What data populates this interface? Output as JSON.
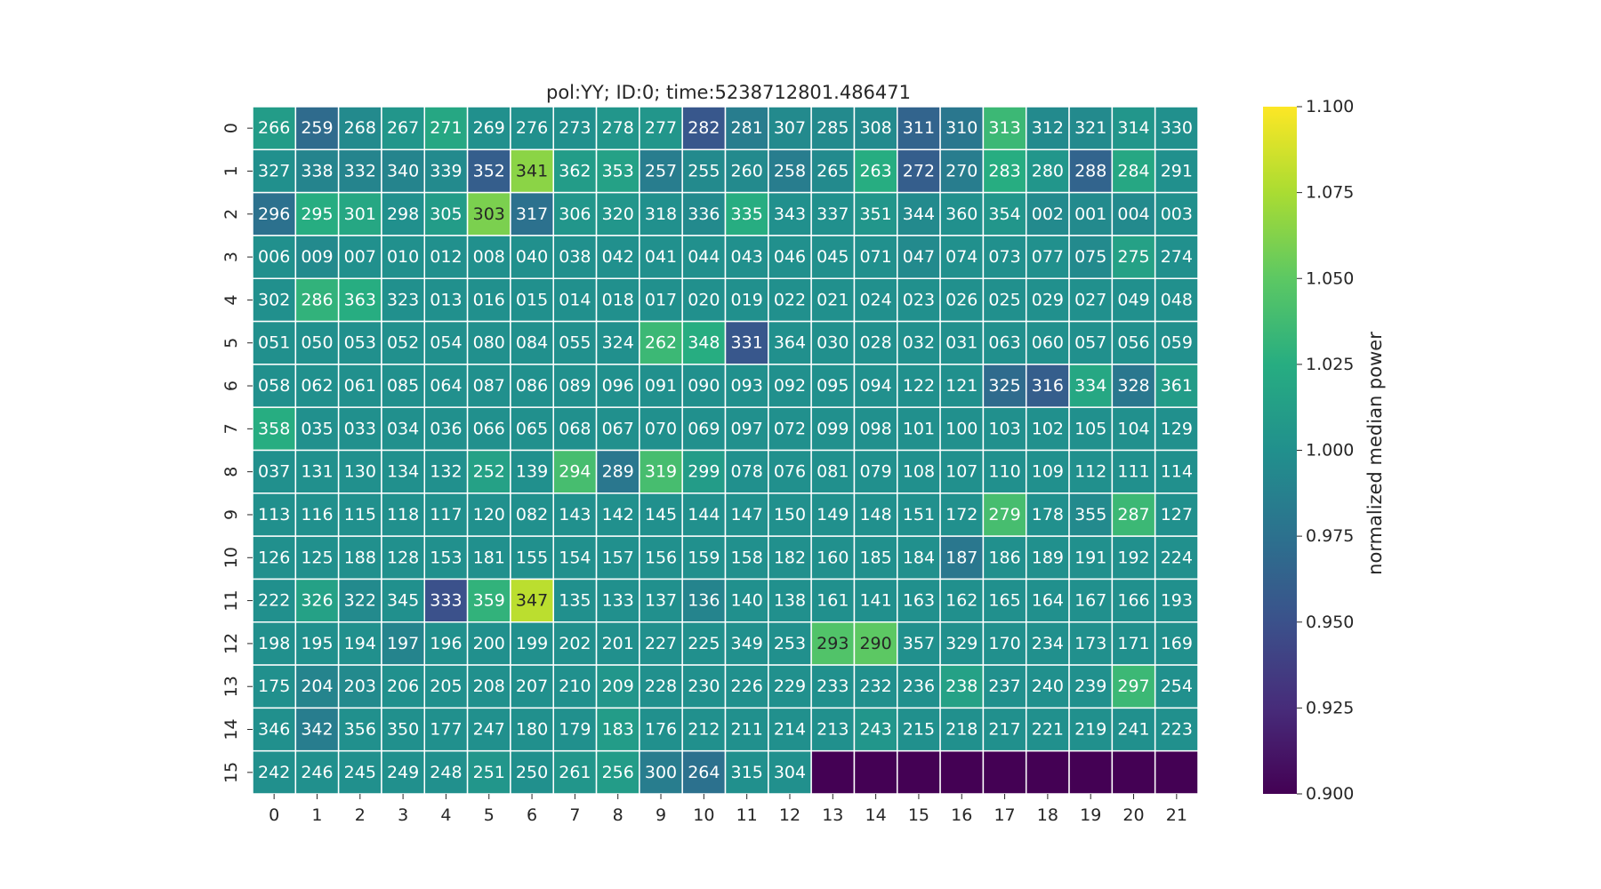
{
  "chart_data": {
    "type": "heatmap",
    "title": "pol:YY; ID:0; time:5238712801.486471",
    "x_ticks": [
      "0",
      "1",
      "2",
      "3",
      "4",
      "5",
      "6",
      "7",
      "8",
      "9",
      "10",
      "11",
      "12",
      "13",
      "14",
      "15",
      "16",
      "17",
      "18",
      "19",
      "20",
      "21"
    ],
    "y_ticks": [
      "0",
      "1",
      "2",
      "3",
      "4",
      "5",
      "6",
      "7",
      "8",
      "9",
      "10",
      "11",
      "12",
      "13",
      "14",
      "15"
    ],
    "colorbar": {
      "label": "normalized median power",
      "ticks": [
        "0.900",
        "0.925",
        "0.950",
        "0.975",
        "1.000",
        "1.025",
        "1.050",
        "1.075",
        "1.100"
      ],
      "range": [
        0.9,
        1.1
      ],
      "colormap": "viridis"
    },
    "labels": [
      [
        "266",
        "259",
        "268",
        "267",
        "271",
        "269",
        "276",
        "273",
        "278",
        "277",
        "282",
        "281",
        "307",
        "285",
        "308",
        "311",
        "310",
        "313",
        "312",
        "321",
        "314",
        "330"
      ],
      [
        "327",
        "338",
        "332",
        "340",
        "339",
        "352",
        "341",
        "362",
        "353",
        "257",
        "255",
        "260",
        "258",
        "265",
        "263",
        "272",
        "270",
        "283",
        "280",
        "288",
        "284",
        "291"
      ],
      [
        "296",
        "295",
        "301",
        "298",
        "305",
        "303",
        "317",
        "306",
        "320",
        "318",
        "336",
        "335",
        "343",
        "337",
        "351",
        "344",
        "360",
        "354",
        "002",
        "001",
        "004",
        "003"
      ],
      [
        "006",
        "009",
        "007",
        "010",
        "012",
        "008",
        "040",
        "038",
        "042",
        "041",
        "044",
        "043",
        "046",
        "045",
        "071",
        "047",
        "074",
        "073",
        "077",
        "075",
        "275",
        "274"
      ],
      [
        "302",
        "286",
        "363",
        "323",
        "013",
        "016",
        "015",
        "014",
        "018",
        "017",
        "020",
        "019",
        "022",
        "021",
        "024",
        "023",
        "026",
        "025",
        "029",
        "027",
        "049",
        "048"
      ],
      [
        "051",
        "050",
        "053",
        "052",
        "054",
        "080",
        "084",
        "055",
        "324",
        "262",
        "348",
        "331",
        "364",
        "030",
        "028",
        "032",
        "031",
        "063",
        "060",
        "057",
        "056",
        "059"
      ],
      [
        "058",
        "062",
        "061",
        "085",
        "064",
        "087",
        "086",
        "089",
        "096",
        "091",
        "090",
        "093",
        "092",
        "095",
        "094",
        "122",
        "121",
        "325",
        "316",
        "334",
        "328",
        "361"
      ],
      [
        "358",
        "035",
        "033",
        "034",
        "036",
        "066",
        "065",
        "068",
        "067",
        "070",
        "069",
        "097",
        "072",
        "099",
        "098",
        "101",
        "100",
        "103",
        "102",
        "105",
        "104",
        "129"
      ],
      [
        "037",
        "131",
        "130",
        "134",
        "132",
        "252",
        "139",
        "294",
        "289",
        "319",
        "299",
        "078",
        "076",
        "081",
        "079",
        "108",
        "107",
        "110",
        "109",
        "112",
        "111",
        "114"
      ],
      [
        "113",
        "116",
        "115",
        "118",
        "117",
        "120",
        "082",
        "143",
        "142",
        "145",
        "144",
        "147",
        "150",
        "149",
        "148",
        "151",
        "172",
        "279",
        "178",
        "355",
        "287",
        "127"
      ],
      [
        "126",
        "125",
        "188",
        "128",
        "153",
        "181",
        "155",
        "154",
        "157",
        "156",
        "159",
        "158",
        "182",
        "160",
        "185",
        "184",
        "187",
        "186",
        "189",
        "191",
        "192",
        "224"
      ],
      [
        "222",
        "326",
        "322",
        "345",
        "333",
        "359",
        "347",
        "135",
        "133",
        "137",
        "136",
        "140",
        "138",
        "161",
        "141",
        "163",
        "162",
        "165",
        "164",
        "167",
        "166",
        "193"
      ],
      [
        "198",
        "195",
        "194",
        "197",
        "196",
        "200",
        "199",
        "202",
        "201",
        "227",
        "225",
        "349",
        "253",
        "293",
        "290",
        "357",
        "329",
        "170",
        "234",
        "173",
        "171",
        "169"
      ],
      [
        "175",
        "204",
        "203",
        "206",
        "205",
        "208",
        "207",
        "210",
        "209",
        "228",
        "230",
        "226",
        "229",
        "233",
        "232",
        "236",
        "238",
        "237",
        "240",
        "239",
        "297",
        "254"
      ],
      [
        "346",
        "342",
        "356",
        "350",
        "177",
        "247",
        "180",
        "179",
        "183",
        "176",
        "212",
        "211",
        "214",
        "213",
        "243",
        "215",
        "218",
        "217",
        "221",
        "219",
        "241",
        "223"
      ],
      [
        "242",
        "246",
        "245",
        "249",
        "248",
        "251",
        "250",
        "261",
        "256",
        "300",
        "264",
        "315",
        "304",
        "",
        "",
        "",
        "",
        "",
        "",
        "",
        "",
        ""
      ]
    ],
    "values": [
      [
        1.01,
        0.97,
        0.995,
        1.005,
        1.02,
        1.0,
        1.0,
        1.0,
        1.005,
        1.005,
        0.955,
        0.985,
        0.995,
        0.995,
        0.995,
        0.965,
        0.98,
        1.035,
        0.995,
        0.995,
        1.005,
        1.0
      ],
      [
        1.0,
        0.99,
        0.99,
        0.99,
        0.995,
        0.96,
        1.065,
        1.01,
        1.015,
        0.985,
        0.995,
        0.995,
        0.985,
        0.995,
        1.025,
        0.96,
        0.985,
        1.025,
        1.005,
        0.965,
        1.02,
        1.0
      ],
      [
        0.975,
        1.025,
        1.02,
        1.0,
        1.01,
        1.06,
        0.975,
        1.005,
        1.005,
        1.0,
        0.995,
        1.025,
        1.0,
        1.0,
        1.005,
        0.995,
        1.0,
        1.005,
        0.995,
        0.995,
        0.995,
        1.0
      ],
      [
        1.0,
        0.995,
        1.0,
        1.0,
        1.0,
        1.0,
        1.0,
        1.0,
        1.0,
        1.0,
        1.0,
        1.0,
        1.0,
        1.0,
        1.0,
        0.995,
        1.0,
        1.0,
        1.0,
        0.995,
        1.015,
        1.0
      ],
      [
        1.0,
        1.03,
        1.025,
        1.0,
        1.0,
        1.0,
        1.0,
        1.0,
        1.0,
        1.0,
        1.0,
        1.0,
        1.0,
        1.0,
        1.0,
        1.0,
        1.0,
        1.0,
        1.0,
        1.0,
        1.0,
        1.0
      ],
      [
        1.0,
        1.0,
        1.0,
        1.0,
        1.0,
        1.0,
        1.0,
        1.0,
        1.0,
        1.035,
        1.025,
        0.955,
        1.0,
        1.0,
        1.0,
        1.0,
        1.0,
        1.0,
        1.0,
        1.0,
        1.0,
        1.0
      ],
      [
        1.0,
        1.0,
        1.0,
        1.0,
        1.0,
        1.0,
        1.0,
        1.0,
        1.0,
        1.0,
        1.0,
        1.0,
        1.0,
        1.0,
        1.0,
        1.0,
        1.0,
        0.97,
        0.96,
        1.02,
        0.98,
        1.01
      ],
      [
        1.025,
        1.0,
        1.0,
        1.0,
        1.0,
        1.0,
        1.0,
        1.0,
        1.0,
        1.0,
        1.0,
        1.0,
        1.0,
        1.0,
        1.0,
        1.0,
        1.0,
        1.0,
        1.0,
        1.0,
        1.0,
        1.0
      ],
      [
        1.0,
        1.0,
        1.0,
        1.0,
        1.0,
        1.015,
        1.0,
        1.04,
        0.98,
        1.04,
        1.01,
        1.0,
        1.0,
        1.0,
        1.0,
        1.0,
        1.0,
        1.0,
        1.0,
        1.0,
        1.0,
        1.0
      ],
      [
        1.0,
        1.0,
        1.0,
        1.0,
        1.0,
        1.0,
        1.0,
        1.0,
        1.0,
        1.0,
        1.0,
        1.0,
        1.0,
        1.0,
        1.0,
        1.0,
        1.0,
        1.04,
        1.0,
        0.995,
        1.035,
        1.0
      ],
      [
        1.0,
        1.0,
        1.0,
        1.0,
        1.0,
        1.0,
        1.0,
        1.0,
        1.0,
        1.0,
        1.0,
        1.0,
        1.0,
        1.0,
        1.0,
        1.0,
        0.98,
        1.0,
        1.0,
        1.0,
        1.0,
        1.0
      ],
      [
        1.0,
        1.015,
        0.995,
        1.0,
        0.95,
        1.03,
        1.08,
        1.0,
        1.0,
        1.0,
        0.99,
        1.0,
        1.0,
        1.0,
        1.0,
        1.0,
        1.0,
        1.0,
        1.0,
        1.0,
        1.0,
        1.0
      ],
      [
        1.0,
        1.0,
        1.0,
        0.99,
        1.0,
        1.0,
        1.0,
        1.0,
        1.0,
        1.0,
        1.0,
        1.0,
        1.0,
        1.045,
        1.05,
        1.0,
        1.0,
        1.0,
        1.0,
        1.0,
        1.0,
        1.0
      ],
      [
        1.0,
        0.99,
        0.995,
        1.0,
        1.0,
        1.0,
        1.0,
        1.0,
        1.005,
        1.0,
        1.0,
        1.0,
        1.0,
        1.0,
        1.0,
        1.0,
        1.015,
        1.0,
        1.0,
        1.0,
        1.035,
        1.0
      ],
      [
        1.0,
        0.985,
        1.0,
        1.0,
        1.0,
        1.0,
        1.0,
        1.0,
        1.01,
        1.0,
        1.0,
        1.0,
        1.0,
        1.0,
        1.005,
        1.0,
        1.0,
        1.0,
        1.0,
        1.0,
        1.0,
        1.0
      ],
      [
        1.0,
        1.0,
        1.0,
        1.0,
        1.0,
        1.005,
        1.0,
        1.005,
        1.01,
        0.985,
        0.975,
        1.0,
        1.0,
        0.9,
        0.9,
        0.9,
        0.9,
        0.9,
        0.9,
        0.9,
        0.9,
        0.9
      ]
    ]
  }
}
